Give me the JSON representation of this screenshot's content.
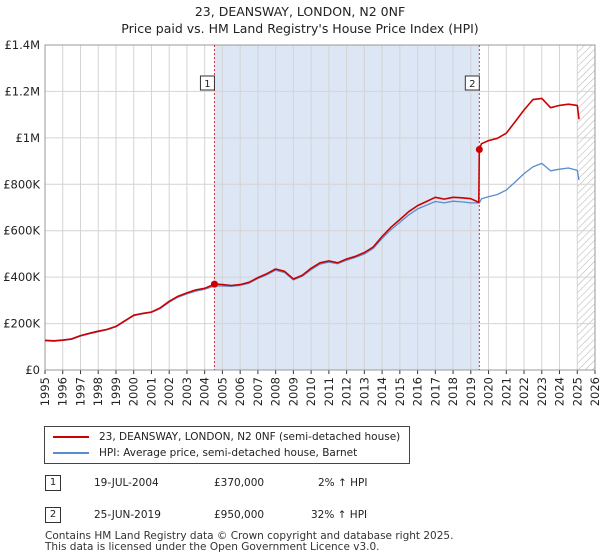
{
  "title": "23, DEANSWAY, LONDON, N2 0NF",
  "subtitle": "Price paid vs. HM Land Registry's House Price Index (HPI)",
  "colors": {
    "property": "#cc0000",
    "hpi": "#5b8ccc",
    "shade": "#dce6f5",
    "grid": "#d4d4d4",
    "hatch": "#bbbbbb"
  },
  "legend": {
    "property": "23, DEANSWAY, LONDON, N2 0NF (semi-detached house)",
    "hpi": "HPI: Average price, semi-detached house, Barnet"
  },
  "transactions": [
    {
      "id": "1",
      "date": "19-JUL-2004",
      "price": "£370,000",
      "hpi": "2% ↑ HPI"
    },
    {
      "id": "2",
      "date": "25-JUN-2019",
      "price": "£950,000",
      "hpi": "32% ↑ HPI"
    }
  ],
  "footer": {
    "line1": "Contains HM Land Registry data © Crown copyright and database right 2025.",
    "line2": "This data is licensed under the Open Government Licence v3.0."
  },
  "chart_data": {
    "type": "line",
    "title": "23, DEANSWAY, LONDON, N2 0NF",
    "subtitle": "Price paid vs. HM Land Registry's House Price Index (HPI)",
    "xlabel": "",
    "ylabel": "",
    "xlim": [
      1995,
      2026
    ],
    "ylim": [
      0,
      1400000
    ],
    "x_ticks": [
      1995,
      1996,
      1997,
      1998,
      1999,
      2000,
      2001,
      2002,
      2003,
      2004,
      2005,
      2006,
      2007,
      2008,
      2009,
      2010,
      2011,
      2012,
      2013,
      2014,
      2015,
      2016,
      2017,
      2018,
      2019,
      2020,
      2021,
      2022,
      2023,
      2024,
      2025,
      2026
    ],
    "y_ticks": [
      0,
      200000,
      400000,
      600000,
      800000,
      1000000,
      1200000,
      1400000
    ],
    "y_tick_labels": [
      "£0",
      "£200K",
      "£400K",
      "£600K",
      "£800K",
      "£1M",
      "£1.2M",
      "£1.4M"
    ],
    "grid": true,
    "shaded_range": [
      2004.55,
      2019.48
    ],
    "forecast_hatch_from": 2025.0,
    "series": [
      {
        "name": "23, DEANSWAY, LONDON, N2 0NF (semi-detached house)",
        "x": [
          1995.0,
          1995.5,
          1996.0,
          1996.5,
          1997.0,
          1997.5,
          1998.0,
          1998.5,
          1999.0,
          1999.5,
          2000.0,
          2000.5,
          2001.0,
          2001.5,
          2002.0,
          2002.5,
          2003.0,
          2003.5,
          2004.0,
          2004.55,
          2005.0,
          2005.5,
          2006.0,
          2006.5,
          2007.0,
          2007.5,
          2008.0,
          2008.5,
          2009.0,
          2009.5,
          2010.0,
          2010.5,
          2011.0,
          2011.5,
          2012.0,
          2012.5,
          2013.0,
          2013.5,
          2014.0,
          2014.5,
          2015.0,
          2015.5,
          2016.0,
          2016.5,
          2017.0,
          2017.5,
          2018.0,
          2018.5,
          2019.0,
          2019.45,
          2019.48,
          2019.6,
          2020.0,
          2020.5,
          2021.0,
          2021.5,
          2022.0,
          2022.5,
          2023.0,
          2023.5,
          2024.0,
          2024.5,
          2025.0,
          2025.1
        ],
        "values": [
          128000,
          126000,
          129000,
          134000,
          148000,
          158000,
          167000,
          175000,
          188000,
          212000,
          236000,
          244000,
          250000,
          268000,
          296000,
          318000,
          332000,
          345000,
          352000,
          370000,
          368000,
          364000,
          368000,
          378000,
          398000,
          415000,
          435000,
          425000,
          392000,
          408000,
          438000,
          462000,
          470000,
          462000,
          478000,
          490000,
          506000,
          530000,
          575000,
          615000,
          648000,
          682000,
          708000,
          726000,
          744000,
          736000,
          744000,
          742000,
          738000,
          722000,
          950000,
          975000,
          988000,
          998000,
          1020000,
          1070000,
          1120000,
          1165000,
          1170000,
          1130000,
          1140000,
          1145000,
          1140000,
          1080000
        ]
      },
      {
        "name": "HPI: Average price, semi-detached house, Barnet",
        "x": [
          1995.0,
          1995.5,
          1996.0,
          1996.5,
          1997.0,
          1997.5,
          1998.0,
          1998.5,
          1999.0,
          1999.5,
          2000.0,
          2000.5,
          2001.0,
          2001.5,
          2002.0,
          2002.5,
          2003.0,
          2003.5,
          2004.0,
          2004.55,
          2005.0,
          2005.5,
          2006.0,
          2006.5,
          2007.0,
          2007.5,
          2008.0,
          2008.5,
          2009.0,
          2009.5,
          2010.0,
          2010.5,
          2011.0,
          2011.5,
          2012.0,
          2012.5,
          2013.0,
          2013.5,
          2014.0,
          2014.5,
          2015.0,
          2015.5,
          2016.0,
          2016.5,
          2017.0,
          2017.5,
          2018.0,
          2018.5,
          2019.0,
          2019.48,
          2019.6,
          2020.0,
          2020.5,
          2021.0,
          2021.5,
          2022.0,
          2022.5,
          2023.0,
          2023.5,
          2024.0,
          2024.5,
          2025.0,
          2025.1
        ],
        "values": [
          126000,
          124000,
          127000,
          132000,
          146000,
          156000,
          165000,
          173000,
          186000,
          210000,
          234000,
          242000,
          248000,
          265000,
          292000,
          314000,
          328000,
          340000,
          348000,
          362000,
          362000,
          360000,
          365000,
          374000,
          394000,
          410000,
          430000,
          420000,
          388000,
          404000,
          432000,
          456000,
          465000,
          458000,
          473000,
          485000,
          500000,
          524000,
          567000,
          605000,
          636000,
          668000,
          694000,
          710000,
          726000,
          720000,
          727000,
          724000,
          720000,
          720000,
          738000,
          746000,
          756000,
          775000,
          810000,
          846000,
          875000,
          890000,
          858000,
          865000,
          870000,
          860000,
          818000
        ]
      }
    ],
    "annotations": [
      {
        "label": "1",
        "x": 2004.55,
        "y": 370000,
        "date": "19-JUL-2004",
        "price": "£370,000",
        "note": "2% ↑ HPI"
      },
      {
        "label": "2",
        "x": 2019.48,
        "y": 950000,
        "date": "25-JUN-2019",
        "price": "£950,000",
        "note": "32% ↑ HPI"
      }
    ]
  }
}
